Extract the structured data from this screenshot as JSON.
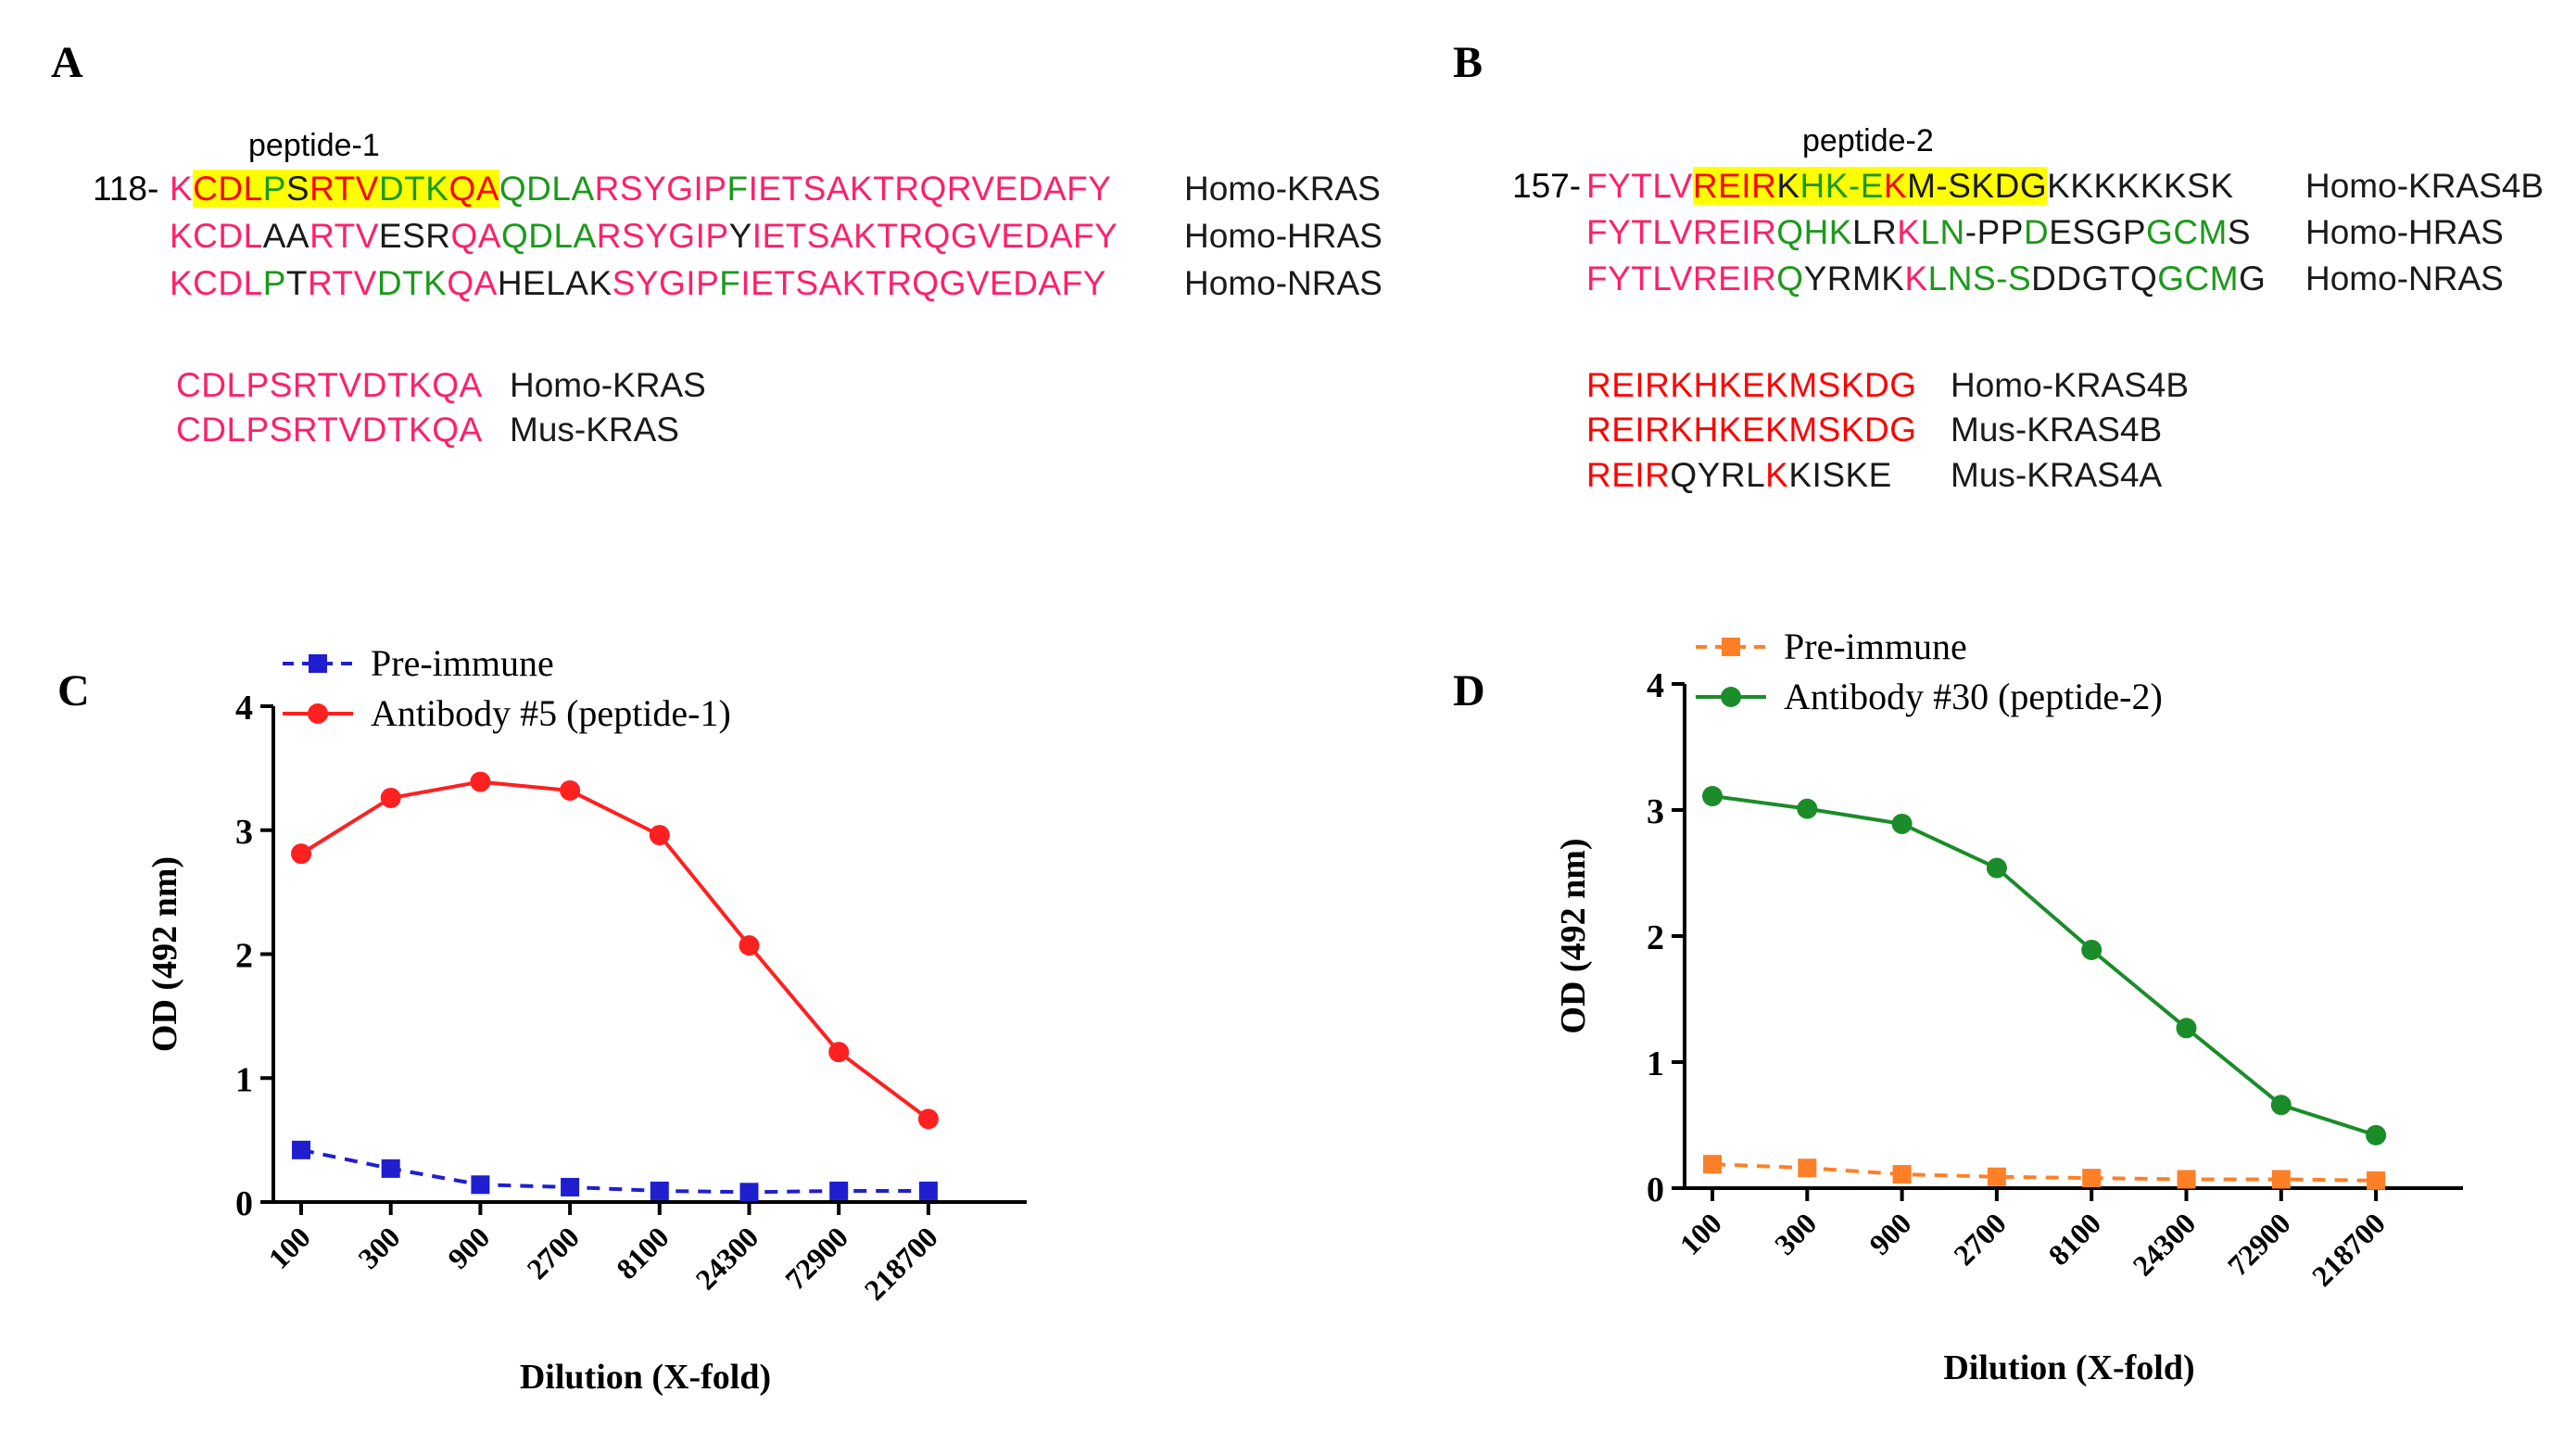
{
  "panels": {
    "A": {
      "letter": "A",
      "peptide_label": "peptide-1",
      "prefix": "118-",
      "rows": [
        {
          "label": "Homo-KRAS"
        },
        {
          "label": "Homo-HRAS"
        },
        {
          "label": "Homo-NRAS"
        }
      ],
      "short_rows": [
        {
          "seq": "CDLPSRTVDTKQA",
          "label": "Homo-KRAS"
        },
        {
          "seq": "CDLPSRTVDTKQA",
          "label": "Mus-KRAS"
        }
      ]
    },
    "B": {
      "letter": "B",
      "peptide_label": "peptide-2",
      "prefix": "157-",
      "rows": [
        {
          "label": "Homo-KRAS4B"
        },
        {
          "label": "Homo-HRAS"
        },
        {
          "label": "Homo-NRAS"
        }
      ],
      "short_rows": [
        {
          "label": "Homo-KRAS4B"
        },
        {
          "label": "Mus-KRAS4B"
        },
        {
          "label": "Mus-KRAS4A"
        }
      ]
    },
    "C": {
      "letter": "C"
    },
    "D": {
      "letter": "D"
    }
  },
  "colors": {
    "pre_immune_c": "#1f1fd0",
    "antibody_c": "#ff2020",
    "pre_immune_d": "#ff7f27",
    "antibody_d": "#1a8c2a"
  },
  "chart_data": [
    {
      "type": "line",
      "panel": "C",
      "categories": [
        "100",
        "300",
        "900",
        "2700",
        "8100",
        "24300",
        "72900",
        "218700"
      ],
      "series": [
        {
          "name": "Pre-immune",
          "marker": "square",
          "dashed": true,
          "values": [
            0.42,
            0.27,
            0.14,
            0.12,
            0.09,
            0.08,
            0.09,
            0.09
          ]
        },
        {
          "name": "Antibody #5 (peptide-1)",
          "marker": "circle",
          "dashed": false,
          "values": [
            2.81,
            3.26,
            3.39,
            3.32,
            2.96,
            2.07,
            1.21,
            0.67
          ]
        }
      ],
      "xlabel": "Dilution (X-fold)",
      "ylabel": "OD (492 nm)",
      "ylim": [
        0,
        4
      ],
      "yticks": [
        "0",
        "1",
        "2",
        "3",
        "4"
      ],
      "legend": "top-left"
    },
    {
      "type": "line",
      "panel": "D",
      "categories": [
        "100",
        "300",
        "900",
        "2700",
        "8100",
        "24300",
        "72900",
        "218700"
      ],
      "series": [
        {
          "name": "Pre-immune",
          "marker": "square",
          "dashed": true,
          "values": [
            0.19,
            0.16,
            0.11,
            0.09,
            0.08,
            0.07,
            0.07,
            0.06
          ]
        },
        {
          "name": "Antibody #30 (peptide-2)",
          "marker": "circle",
          "dashed": false,
          "values": [
            3.11,
            3.01,
            2.89,
            2.54,
            1.89,
            1.27,
            0.66,
            0.42
          ]
        }
      ],
      "xlabel": "Dilution (X-fold)",
      "ylabel": "OD (492 nm)",
      "ylim": [
        0,
        4
      ],
      "yticks": [
        "0",
        "1",
        "2",
        "3",
        "4"
      ],
      "legend": "top-left"
    }
  ]
}
